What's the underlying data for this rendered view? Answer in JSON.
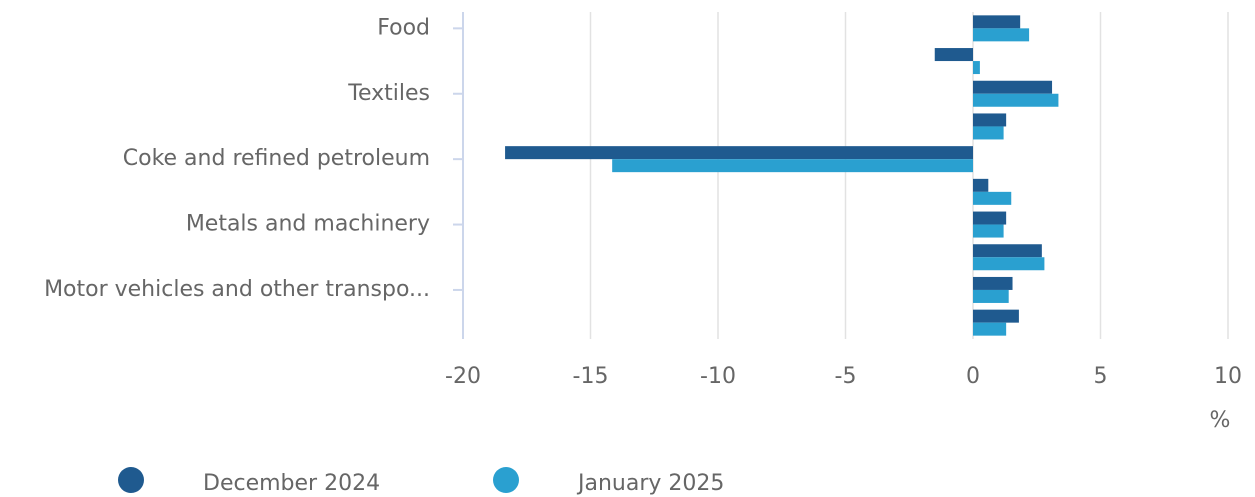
{
  "chart_data": {
    "type": "bar",
    "orientation": "horizontal",
    "categories": [
      "Food",
      null,
      "Textiles",
      null,
      "Coke and refined petroleum",
      null,
      "Metals and machinery",
      null,
      "Motor vehicles and other transpo...",
      null
    ],
    "series": [
      {
        "name": "December 2024",
        "color": "#1f5a8f",
        "values": [
          1.85,
          -1.5,
          3.1,
          1.3,
          -18.35,
          0.6,
          1.3,
          2.7,
          1.55,
          1.8
        ]
      },
      {
        "name": "January 2025",
        "color": "#2aa0d0",
        "values": [
          2.2,
          0.27,
          3.35,
          1.2,
          -14.15,
          1.5,
          1.2,
          2.8,
          1.4,
          1.3
        ]
      }
    ],
    "xlim": [
      -20,
      10
    ],
    "xticks": [
      -20,
      -15,
      -10,
      -5,
      0,
      5,
      10
    ],
    "xlabel": "%",
    "grid": true,
    "legend": "bottom"
  }
}
